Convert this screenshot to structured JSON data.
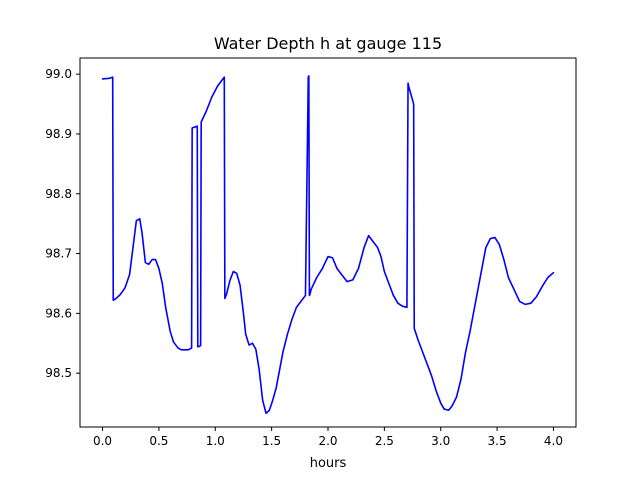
{
  "chart_data": {
    "type": "line",
    "title": "Water Depth h at gauge 115",
    "xlabel": "hours",
    "ylabel": "",
    "xlim": [
      -0.2,
      4.2
    ],
    "ylim": [
      98.41,
      99.027
    ],
    "xticks": [
      0.0,
      0.5,
      1.0,
      1.5,
      2.0,
      2.5,
      3.0,
      3.5,
      4.0
    ],
    "xtick_labels": [
      "0.0",
      "0.5",
      "1.0",
      "1.5",
      "2.0",
      "2.5",
      "3.0",
      "3.5",
      "4.0"
    ],
    "yticks": [
      98.5,
      98.6,
      98.7,
      98.8,
      98.9,
      99.0
    ],
    "ytick_labels": [
      "98.5",
      "98.6",
      "98.7",
      "98.8",
      "98.9",
      "99.0"
    ],
    "grid": false,
    "series": [
      {
        "color": "#0000ff",
        "x": [
          0.0,
          0.06,
          0.09,
          0.095,
          0.12,
          0.16,
          0.2,
          0.24,
          0.27,
          0.3,
          0.33,
          0.35,
          0.38,
          0.41,
          0.44,
          0.47,
          0.5,
          0.53,
          0.56,
          0.6,
          0.63,
          0.67,
          0.7,
          0.73,
          0.76,
          0.79,
          0.795,
          0.84,
          0.845,
          0.87,
          0.875,
          0.92,
          0.97,
          1.02,
          1.08,
          1.085,
          1.1,
          1.13,
          1.16,
          1.19,
          1.22,
          1.25,
          1.27,
          1.3,
          1.33,
          1.36,
          1.39,
          1.42,
          1.45,
          1.48,
          1.51,
          1.54,
          1.57,
          1.6,
          1.64,
          1.68,
          1.72,
          1.76,
          1.8,
          1.825,
          1.83,
          1.835,
          1.84,
          1.85,
          1.9,
          1.95,
          2.0,
          2.04,
          2.08,
          2.12,
          2.17,
          2.22,
          2.27,
          2.32,
          2.36,
          2.4,
          2.44,
          2.47,
          2.5,
          2.54,
          2.58,
          2.62,
          2.66,
          2.7,
          2.71,
          2.715,
          2.76,
          2.765,
          2.8,
          2.84,
          2.88,
          2.92,
          2.96,
          3.0,
          3.03,
          3.07,
          3.1,
          3.14,
          3.18,
          3.22,
          3.26,
          3.3,
          3.35,
          3.4,
          3.44,
          3.48,
          3.52,
          3.56,
          3.6,
          3.65,
          3.7,
          3.75,
          3.8,
          3.85,
          3.9,
          3.95,
          4.0
        ],
        "values": [
          98.992,
          98.993,
          98.995,
          98.622,
          98.625,
          98.632,
          98.643,
          98.665,
          98.71,
          98.755,
          98.758,
          98.735,
          98.685,
          98.682,
          98.69,
          98.69,
          98.675,
          98.65,
          98.61,
          98.57,
          98.552,
          98.542,
          98.539,
          98.539,
          98.539,
          98.542,
          98.91,
          98.913,
          98.544,
          98.546,
          98.92,
          98.938,
          98.962,
          98.98,
          98.995,
          98.625,
          98.632,
          98.655,
          98.67,
          98.667,
          98.647,
          98.6,
          98.565,
          98.547,
          98.55,
          98.54,
          98.505,
          98.455,
          98.433,
          98.438,
          98.455,
          98.475,
          98.505,
          98.535,
          98.565,
          98.59,
          98.61,
          98.62,
          98.63,
          98.995,
          98.997,
          98.63,
          98.632,
          98.64,
          98.66,
          98.675,
          98.695,
          98.693,
          98.675,
          98.665,
          98.653,
          98.656,
          98.675,
          98.71,
          98.73,
          98.72,
          98.71,
          98.695,
          98.67,
          98.65,
          98.63,
          98.617,
          98.612,
          98.61,
          98.985,
          98.98,
          98.95,
          98.575,
          98.555,
          98.535,
          98.515,
          98.495,
          98.47,
          98.45,
          98.44,
          98.438,
          98.445,
          98.46,
          98.49,
          98.535,
          98.57,
          98.61,
          98.66,
          98.71,
          98.725,
          98.727,
          98.715,
          98.69,
          98.66,
          98.64,
          98.62,
          98.615,
          98.617,
          98.628,
          98.645,
          98.66,
          98.668
        ]
      }
    ]
  }
}
